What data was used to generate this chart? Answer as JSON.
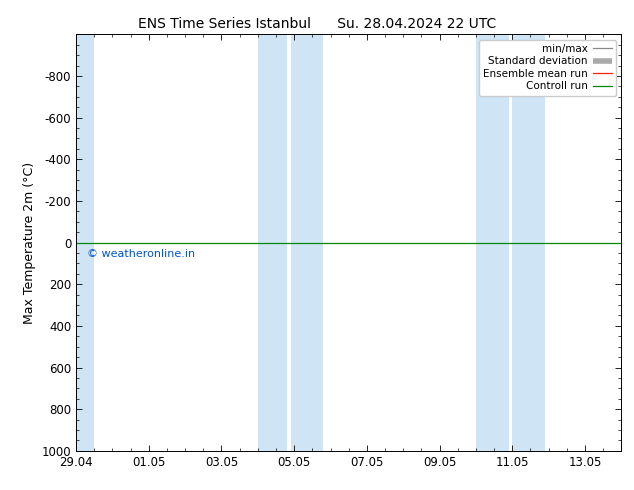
{
  "title_left": "ENS Time Series Istanbul",
  "title_right": "Su. 28.04.2024 22 UTC",
  "ylabel": "Max Temperature 2m (°C)",
  "ylim_bottom": 1000,
  "ylim_top": -1000,
  "yticks": [
    -800,
    -600,
    -400,
    -200,
    0,
    200,
    400,
    600,
    800,
    1000
  ],
  "xtick_labels": [
    "29.04",
    "01.05",
    "03.05",
    "05.05",
    "07.05",
    "09.05",
    "11.05",
    "13.05"
  ],
  "xtick_positions": [
    0,
    2,
    4,
    6,
    8,
    10,
    12,
    14
  ],
  "xlim": [
    0,
    15
  ],
  "shaded_bands": [
    [
      -0.1,
      0.5
    ],
    [
      5.0,
      5.8
    ],
    [
      5.9,
      6.8
    ],
    [
      11.0,
      11.9
    ],
    [
      12.0,
      12.9
    ]
  ],
  "green_line_y": 0,
  "copyright_text": "© weatheronline.in",
  "copyright_color": "#0055cc",
  "background_color": "#ffffff",
  "plot_bg_color": "#ffffff",
  "shade_color": "#cfe4f5",
  "legend_labels": [
    "min/max",
    "Standard deviation",
    "Ensemble mean run",
    "Controll run"
  ],
  "legend_line_colors": [
    "#888888",
    "#aaaaaa",
    "#ff2200",
    "#008800"
  ],
  "title_fontsize": 10,
  "axis_fontsize": 9,
  "tick_fontsize": 8.5
}
